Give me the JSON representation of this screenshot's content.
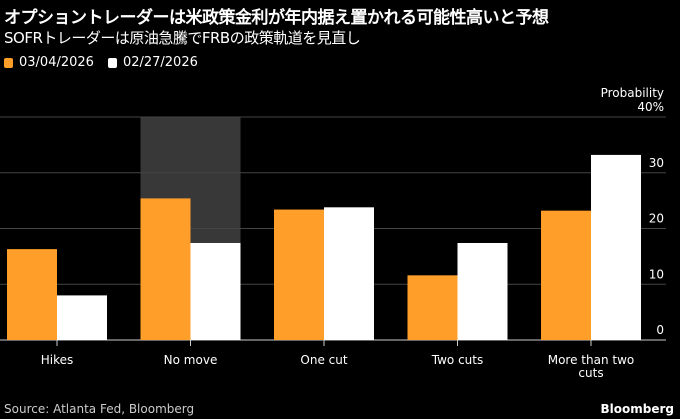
{
  "title": "オプショントレーダーは米政策金利が年内据え置かれる可能性高いと予想",
  "subtitle": "SOFRトレーダーは原油急騰でFRBの政策軌道を見直し",
  "source": "Source: Atlanta Fed, Bloomberg",
  "brand": "Bloomberg",
  "chart_data": {
    "type": "bar",
    "title": "オプショントレーダーは米政策金利が年内据え置かれる可能性高いと予想",
    "subtitle": "SOFRトレーダーは原油急騰でFRBの政策軌道を見直し",
    "ylabel": "Probability",
    "yunit": "%",
    "ylim": [
      0,
      40
    ],
    "yticks": [
      0,
      10,
      20,
      30,
      40
    ],
    "ytick_labels": [
      "0",
      "10",
      "20",
      "30",
      "40%"
    ],
    "y_axis_position": "right",
    "grid": true,
    "legend_position": "top-left",
    "categories": [
      "Hikes",
      "No move",
      "One cut",
      "Two cuts",
      "More than two cuts"
    ],
    "category_labels": [
      [
        "Hikes"
      ],
      [
        "No move"
      ],
      [
        "One cut"
      ],
      [
        "Two cuts"
      ],
      [
        "More than two",
        "cuts"
      ]
    ],
    "highlighted_category": "No move",
    "series": [
      {
        "name": "03/04/2026",
        "color": "#ff9f2a",
        "values": [
          16.3,
          25.4,
          23.4,
          11.6,
          23.2
        ]
      },
      {
        "name": "02/27/2026",
        "color": "#ffffff",
        "values": [
          8.0,
          17.4,
          23.8,
          17.4,
          33.2
        ]
      }
    ],
    "colors": {
      "background": "#000000",
      "grid": "#444444",
      "highlight": "#383838",
      "axis": "#cccccc"
    }
  }
}
